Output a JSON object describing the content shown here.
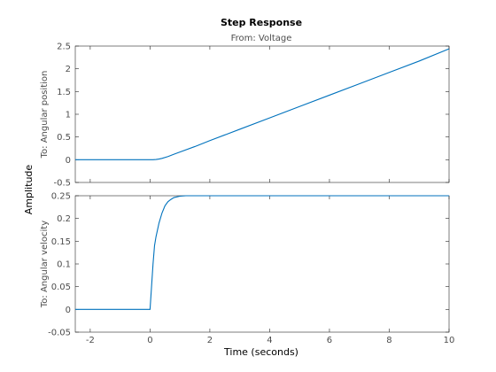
{
  "chart_data": {
    "type": "line",
    "title": "Step Response",
    "subtitle": "From: Voltage",
    "xlabel": "Time (seconds)",
    "ylabel": "Amplitude",
    "grid": false,
    "line_color": "#0072bd",
    "xlim": [
      -2.5,
      10
    ],
    "x_ticks": [
      -2,
      0,
      2,
      4,
      6,
      8,
      10
    ],
    "x_tick_labels": [
      "-2",
      "0",
      "2",
      "4",
      "6",
      "8",
      "10"
    ],
    "panels": [
      {
        "output_label": "To: Angular position",
        "ylim": [
          -0.5,
          2.5
        ],
        "y_ticks": [
          -0.5,
          0,
          0.5,
          1,
          1.5,
          2,
          2.5
        ],
        "y_tick_labels": [
          "-0.5",
          "0",
          "0.5",
          "1",
          "1.5",
          "2",
          "2.5"
        ],
        "series": [
          {
            "x": [
              -2.5,
              0,
              0.1,
              0.2,
              0.3,
              0.4,
              0.6,
              0.8,
              1.0,
              1.5,
              2,
              3,
              4,
              5,
              6,
              7,
              8,
              9,
              10
            ],
            "y": [
              0,
              0,
              0.001,
              0.006,
              0.015,
              0.03,
              0.07,
              0.12,
              0.17,
              0.29,
              0.42,
              0.67,
              0.92,
              1.17,
              1.42,
              1.67,
              1.92,
              2.17,
              2.44
            ]
          }
        ]
      },
      {
        "output_label": "To: Angular velocity",
        "ylim": [
          -0.05,
          0.25
        ],
        "y_ticks": [
          -0.05,
          0,
          0.05,
          0.1,
          0.15,
          0.2,
          0.25
        ],
        "y_tick_labels": [
          "-0.05",
          "0",
          "0.05",
          "0.1",
          "0.15",
          "0.2",
          "0.25"
        ],
        "series": [
          {
            "x": [
              -2.5,
              0,
              0.05,
              0.1,
              0.15,
              0.2,
              0.3,
              0.4,
              0.5,
              0.6,
              0.7,
              0.8,
              1.0,
              1.2,
              1.5,
              2,
              3,
              5,
              10
            ],
            "y": [
              0,
              0,
              0.05,
              0.1,
              0.14,
              0.16,
              0.19,
              0.212,
              0.228,
              0.237,
              0.242,
              0.246,
              0.249,
              0.25,
              0.25,
              0.25,
              0.25,
              0.25,
              0.25
            ]
          }
        ]
      }
    ]
  }
}
